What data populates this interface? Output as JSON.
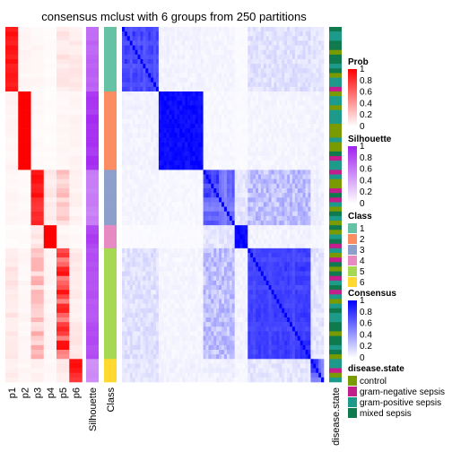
{
  "chart_data": {
    "type": "heatmap",
    "title": "consensus mclust with 6 groups from 250 partitions",
    "n_rows": 61,
    "prob_columns": [
      "p1",
      "p2",
      "p3",
      "p4",
      "p5",
      "p6"
    ],
    "silhouette_label": "Silhouette",
    "class_label": "Class",
    "disease_label": "disease.state",
    "class_sizes": [
      14,
      17,
      12,
      5,
      24,
      5
    ],
    "class_colors": [
      "#66C2A5",
      "#FC8D62",
      "#8DA0CB",
      "#E78AC3",
      "#A6D854",
      "#FFD92F"
    ],
    "silhouette_by_class": [
      0.72,
      0.95,
      0.6,
      0.9,
      0.82,
      0.55
    ],
    "consensus_within": [
      [
        0.75,
        0.9,
        0.78,
        0.7,
        0.85,
        0.8,
        0.72,
        0.88,
        0.7,
        0.75,
        0.82,
        0.78,
        0.72,
        0.8
      ],
      [
        1,
        1,
        1,
        1,
        1,
        1,
        1,
        1,
        1,
        1,
        1,
        1,
        1,
        1,
        1,
        1,
        1
      ],
      [
        0.8,
        0.9,
        0.85,
        0.7,
        0.75,
        0.9,
        0.6,
        0.55,
        0.5,
        0.65,
        0.6,
        0.7
      ],
      [
        1,
        1,
        1,
        1,
        1
      ],
      [
        0.8,
        0.78,
        0.75,
        0.8,
        0.85,
        0.78,
        0.8,
        0.8,
        0.75,
        0.8,
        0.82,
        0.8,
        0.78,
        0.8,
        0.85,
        0.8,
        0.78,
        0.75,
        0.82,
        0.8,
        0.9,
        0.85,
        0.88,
        0.9
      ],
      [
        0.85,
        0.9,
        0.8,
        0.6,
        0.5
      ]
    ],
    "disease_sequence": [
      3,
      2,
      2,
      3,
      3,
      0,
      3,
      3,
      2,
      3,
      0,
      2,
      2,
      1,
      0,
      2,
      2,
      0,
      2,
      2,
      2,
      0,
      0,
      0,
      2,
      0,
      0,
      3,
      1,
      2,
      2,
      1,
      2,
      0,
      0,
      1,
      3,
      1,
      2,
      0,
      3,
      2,
      0,
      3,
      0,
      2,
      3,
      1,
      2,
      0,
      1,
      3,
      0,
      3,
      1,
      2,
      3,
      1,
      2,
      0,
      2
    ],
    "legends": {
      "prob": {
        "title": "Prob",
        "ticks": [
          "1",
          "0.8",
          "0.6",
          "0.4",
          "0.2",
          "0"
        ]
      },
      "silhouette": {
        "title": "Silhouette",
        "ticks": [
          "1",
          "0.8",
          "0.6",
          "0.4",
          "0.2",
          "0"
        ]
      },
      "class": {
        "title": "Class",
        "items": [
          "1",
          "2",
          "3",
          "4",
          "5",
          "6"
        ]
      },
      "consensus": {
        "title": "Consensus",
        "ticks": [
          "1",
          "0.8",
          "0.6",
          "0.4",
          "0.2",
          "0"
        ]
      },
      "disease_state": {
        "title": "disease.state",
        "items": [
          "control",
          "gram-negative sepsis",
          "gram-positive sepsis",
          "mixed sepsis"
        ],
        "colors": [
          "#7A9A01",
          "#C21E8C",
          "#1E9A8A",
          "#0E7A4E"
        ]
      }
    }
  }
}
